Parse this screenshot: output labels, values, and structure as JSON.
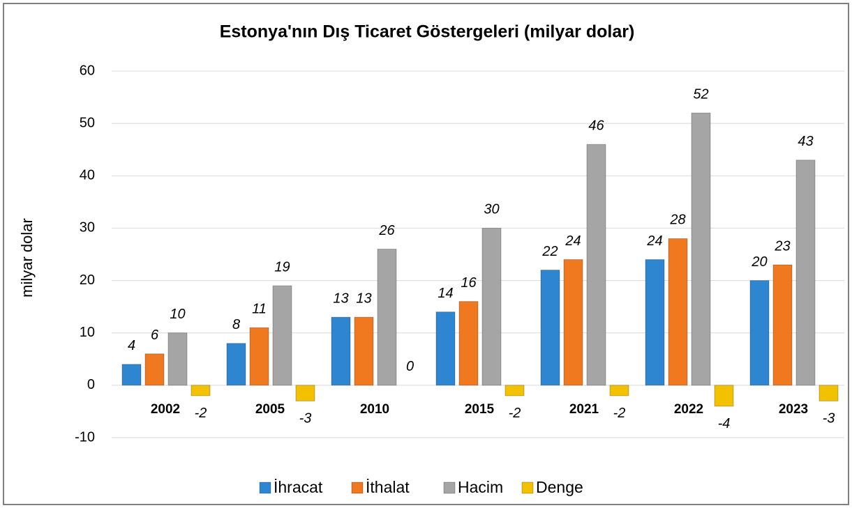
{
  "chart_data": {
    "type": "bar",
    "title": "Estonya'nın Dış Ticaret Göstergeleri  (milyar dolar)",
    "y_label": "milyar dolar",
    "categories": [
      "2002",
      "2005",
      "2010",
      "2015",
      "2021",
      "2022",
      "2023"
    ],
    "series": [
      {
        "name": "İhracat",
        "color": "#2e86d0",
        "values": [
          4,
          8,
          13,
          14,
          22,
          24,
          20
        ]
      },
      {
        "name": "İthalat",
        "color": "#f0781e",
        "values": [
          6,
          11,
          13,
          16,
          24,
          28,
          23
        ]
      },
      {
        "name": "Hacim",
        "color": "#a5a5a5",
        "values": [
          10,
          19,
          26,
          30,
          46,
          52,
          43
        ]
      },
      {
        "name": "Denge",
        "color": "#f2c200",
        "values": [
          -2,
          -3,
          0,
          -2,
          -2,
          -4,
          -3
        ]
      }
    ],
    "ylim": [
      -10,
      60
    ],
    "yticks": [
      -10,
      0,
      10,
      20,
      30,
      40,
      50,
      60
    ],
    "grid": true,
    "legend": "bottom"
  }
}
